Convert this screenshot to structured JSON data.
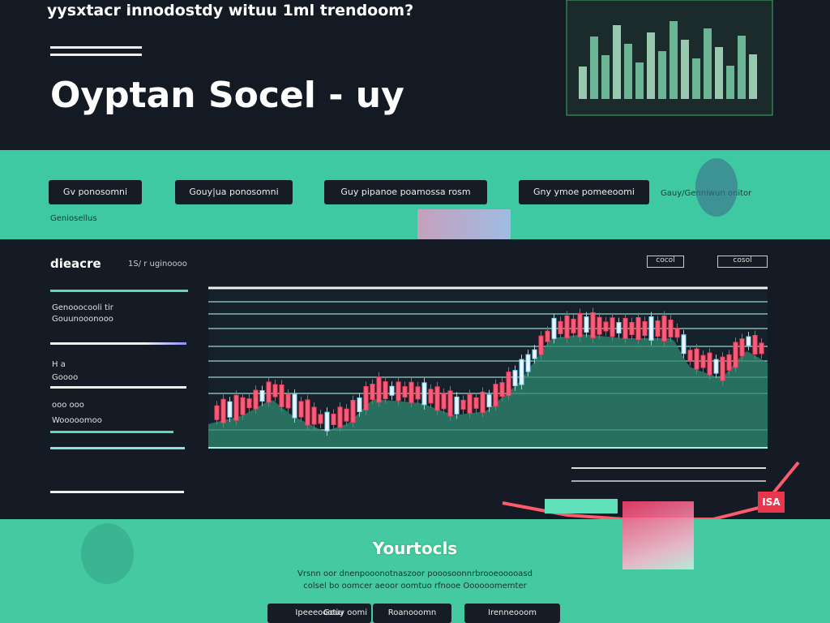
{
  "header": {
    "tagline": "yysxtacr innodostdy wituu 1ml trendoom?",
    "title": "Oyptan Socel - uy"
  },
  "toolbar": {
    "buttons": [
      "Gv ponosomni",
      "Gouy|ua ponosomni",
      "Guy pipanoe poamossa rosm",
      "Gny ymoe pomeeoomi"
    ],
    "link": "Gauy/Genniwun onitor",
    "note": "Geniosellus"
  },
  "panel": {
    "title": "dieacre",
    "subtitle": "1S/ r uginoooo",
    "tabs": [
      "cocol",
      "cosol"
    ],
    "badge": "ISA",
    "sidebar": [
      "Genooocooli tir",
      "Gouunooonooo",
      "H a",
      "Goooo",
      "ooo ooo",
      "Wooooomoo"
    ]
  },
  "footer": {
    "title": "Yourtocls",
    "lines": [
      "Vrsnn oor dnenpooonotnaszoor pooosoonnrbrooeooooasd",
      "colsel bo oomcer aeoor oomtuo rfnooe Oooooomemter"
    ],
    "buttons": [
      "Ipeeeoootiu",
      "Gouy oomi",
      "Roanooomn",
      "Irenneooom"
    ]
  }
}
